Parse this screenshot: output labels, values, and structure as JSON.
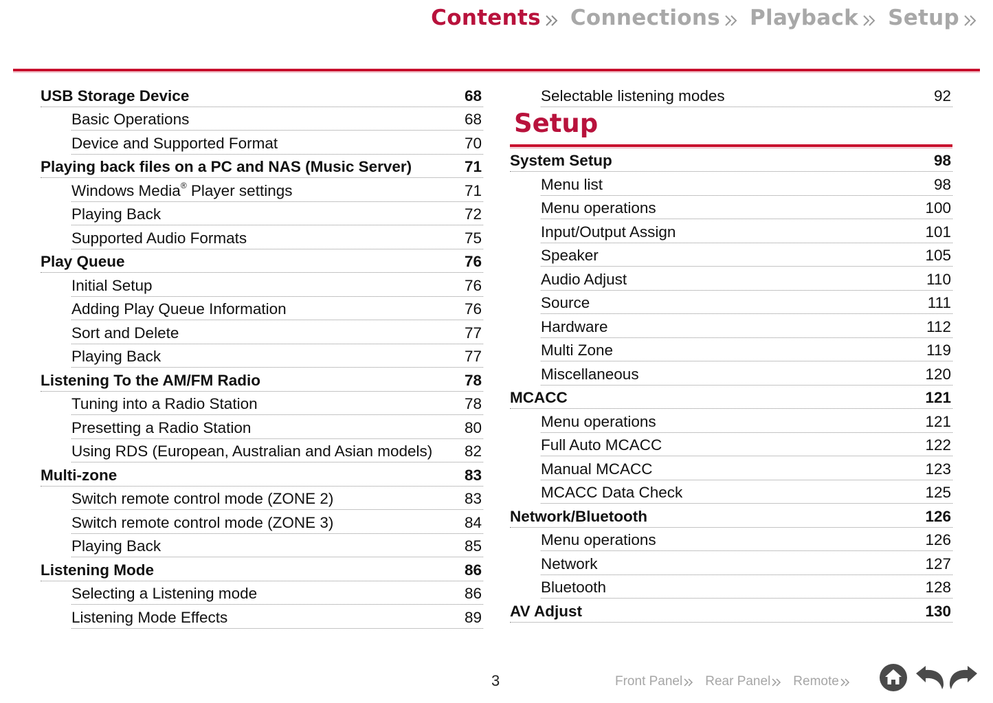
{
  "nav": {
    "tabs": [
      {
        "label": "Contents",
        "active": true
      },
      {
        "label": "Connections",
        "active": false
      },
      {
        "label": "Playback",
        "active": false
      },
      {
        "label": "Setup",
        "active": false
      }
    ]
  },
  "colors": {
    "accent": "#c8102e",
    "active_tab": "#b8123c",
    "inactive_tab": "#a8a8a8"
  },
  "toc_left": [
    {
      "title": "USB Storage Device",
      "page": "68",
      "level": "h"
    },
    {
      "title": "Basic Operations",
      "page": "68",
      "level": "s"
    },
    {
      "title": "Device and Supported Format",
      "page": "70",
      "level": "s"
    },
    {
      "title": "Playing back files on a PC and NAS (Music Server)",
      "page": "71",
      "level": "h"
    },
    {
      "title": "Windows Media",
      "sup": "®",
      "title_after": " Player settings",
      "page": "71",
      "level": "s"
    },
    {
      "title": "Playing Back",
      "page": "72",
      "level": "s"
    },
    {
      "title": "Supported Audio Formats",
      "page": "75",
      "level": "s"
    },
    {
      "title": "Play Queue",
      "page": "76",
      "level": "h"
    },
    {
      "title": "Initial Setup",
      "page": "76",
      "level": "s"
    },
    {
      "title": "Adding Play Queue Information",
      "page": "76",
      "level": "s"
    },
    {
      "title": "Sort and Delete",
      "page": "77",
      "level": "s"
    },
    {
      "title": "Playing Back",
      "page": "77",
      "level": "s"
    },
    {
      "title": "Listening To the AM/FM Radio",
      "page": "78",
      "level": "h"
    },
    {
      "title": "Tuning into a Radio Station",
      "page": "78",
      "level": "s"
    },
    {
      "title": "Presetting a Radio Station",
      "page": "80",
      "level": "s"
    },
    {
      "title": "Using RDS (European, Australian and Asian models)",
      "page": "82",
      "level": "s"
    },
    {
      "title": "Multi-zone",
      "page": "83",
      "level": "h"
    },
    {
      "title": "Switch remote control mode (ZONE 2)",
      "page": "83",
      "level": "s"
    },
    {
      "title": "Switch remote control mode (ZONE 3)",
      "page": "84",
      "level": "s"
    },
    {
      "title": "Playing Back",
      "page": "85",
      "level": "s"
    },
    {
      "title": "Listening Mode",
      "page": "86",
      "level": "h"
    },
    {
      "title": "Selecting a Listening mode",
      "page": "86",
      "level": "s"
    },
    {
      "title": "Listening Mode Effects",
      "page": "89",
      "level": "s"
    }
  ],
  "toc_right_top": [
    {
      "title": "Selectable listening modes",
      "page": "92",
      "level": "s"
    }
  ],
  "section_title": "Setup",
  "toc_right": [
    {
      "title": "System Setup",
      "page": "98",
      "level": "h"
    },
    {
      "title": "Menu list",
      "page": "98",
      "level": "s"
    },
    {
      "title": "Menu operations",
      "page": "100",
      "level": "s"
    },
    {
      "title": "Input/Output Assign",
      "page": "101",
      "level": "s"
    },
    {
      "title": "Speaker",
      "page": "105",
      "level": "s"
    },
    {
      "title": "Audio Adjust",
      "page": "110",
      "level": "s"
    },
    {
      "title": "Source",
      "page": "111",
      "level": "s"
    },
    {
      "title": "Hardware",
      "page": "112",
      "level": "s"
    },
    {
      "title": "Multi Zone",
      "page": "119",
      "level": "s"
    },
    {
      "title": "Miscellaneous",
      "page": "120",
      "level": "s"
    },
    {
      "title": "MCACC",
      "page": "121",
      "level": "h"
    },
    {
      "title": "Menu operations",
      "page": "121",
      "level": "s"
    },
    {
      "title": "Full Auto MCACC",
      "page": "122",
      "level": "s"
    },
    {
      "title": "Manual MCACC",
      "page": "123",
      "level": "s"
    },
    {
      "title": "MCACC Data Check",
      "page": "125",
      "level": "s"
    },
    {
      "title": "Network/Bluetooth",
      "page": "126",
      "level": "h"
    },
    {
      "title": "Menu operations",
      "page": "126",
      "level": "s"
    },
    {
      "title": "Network",
      "page": "127",
      "level": "s"
    },
    {
      "title": "Bluetooth",
      "page": "128",
      "level": "s"
    },
    {
      "title": "AV Adjust",
      "page": "130",
      "level": "h"
    }
  ],
  "footer": {
    "page_number": "3",
    "links": [
      "Front Panel",
      "Rear Panel",
      "Remote"
    ],
    "icons": [
      "home-icon",
      "back-arrow-icon",
      "forward-arrow-icon"
    ]
  }
}
